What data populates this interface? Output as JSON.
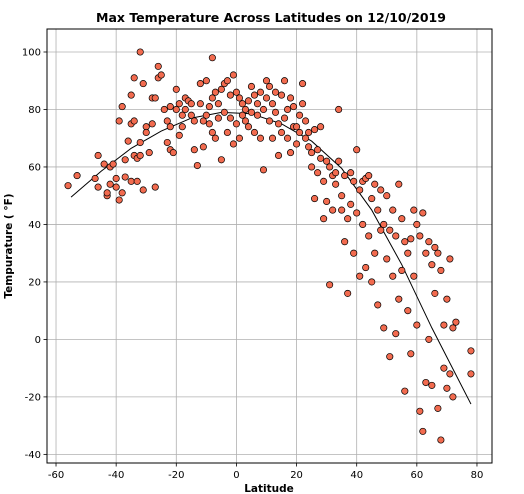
{
  "chart_data": {
    "type": "scatter",
    "title": "Max Temperature Across Latitudes on 12/10/2019",
    "xlabel": "Latitude",
    "ylabel": "Tempurature ( °F)",
    "xlim": [
      -63,
      85
    ],
    "ylim": [
      -43,
      108
    ],
    "xticks": [
      -60,
      -40,
      -20,
      0,
      20,
      40,
      60,
      80
    ],
    "yticks": [
      -40,
      -20,
      0,
      20,
      40,
      60,
      80,
      100
    ],
    "grid": true,
    "point_color": "#f26b4f",
    "point_edge_color": "#000000",
    "trend_line_color": "#000000",
    "trend_line": {
      "x": [
        -55,
        -45,
        -35,
        -25,
        -15,
        -5,
        5,
        15,
        25,
        35,
        45,
        55,
        65,
        78
      ],
      "y": [
        49.5,
        58.5,
        66.5,
        72.5,
        77,
        79,
        78.5,
        75,
        69,
        59.5,
        45,
        26,
        4,
        -22.5
      ]
    },
    "points": [
      [
        -56,
        53.5
      ],
      [
        -53,
        57
      ],
      [
        -47,
        56
      ],
      [
        -46,
        64
      ],
      [
        -46,
        53
      ],
      [
        -44,
        61
      ],
      [
        -43,
        50
      ],
      [
        -43,
        51
      ],
      [
        -42,
        60
      ],
      [
        -42,
        54
      ],
      [
        -41,
        61
      ],
      [
        -40,
        56
      ],
      [
        -40,
        53
      ],
      [
        -39,
        76
      ],
      [
        -39,
        48.5
      ],
      [
        -38,
        81
      ],
      [
        -38,
        51
      ],
      [
        -37,
        56.5
      ],
      [
        -37,
        62.5
      ],
      [
        -36,
        69
      ],
      [
        -35,
        75
      ],
      [
        -35,
        85
      ],
      [
        -35,
        55
      ],
      [
        -34,
        91
      ],
      [
        -34,
        76
      ],
      [
        -34,
        64
      ],
      [
        -33,
        63
      ],
      [
        -33,
        55
      ],
      [
        -32,
        100
      ],
      [
        -32,
        68.5
      ],
      [
        -32,
        64
      ],
      [
        -31,
        89
      ],
      [
        -31,
        52
      ],
      [
        -30,
        74
      ],
      [
        -30,
        72
      ],
      [
        -29,
        65
      ],
      [
        -28,
        84
      ],
      [
        -28,
        75
      ],
      [
        -27,
        84
      ],
      [
        -27,
        53
      ],
      [
        -26,
        91
      ],
      [
        -26,
        95
      ],
      [
        -25,
        92
      ],
      [
        -24,
        80
      ],
      [
        -23,
        76
      ],
      [
        -23,
        68.5
      ],
      [
        -22,
        81
      ],
      [
        -22,
        74
      ],
      [
        -22,
        66
      ],
      [
        -21,
        65
      ],
      [
        -20,
        87
      ],
      [
        -20,
        80
      ],
      [
        -19,
        82
      ],
      [
        -19,
        71
      ],
      [
        -18,
        78
      ],
      [
        -18,
        74
      ],
      [
        -17,
        84
      ],
      [
        -17,
        80
      ],
      [
        -16,
        83
      ],
      [
        -15,
        82
      ],
      [
        -15,
        78
      ],
      [
        -14,
        76
      ],
      [
        -14,
        66
      ],
      [
        -13,
        60.5
      ],
      [
        -12,
        89
      ],
      [
        -12,
        82
      ],
      [
        -11,
        76
      ],
      [
        -11,
        67
      ],
      [
        -10,
        90
      ],
      [
        -10,
        78
      ],
      [
        -9,
        81
      ],
      [
        -9,
        75
      ],
      [
        -8,
        98
      ],
      [
        -8,
        84
      ],
      [
        -8,
        72
      ],
      [
        -7,
        86
      ],
      [
        -7,
        70
      ],
      [
        -6,
        82
      ],
      [
        -6,
        77
      ],
      [
        -5,
        62.5
      ],
      [
        -5,
        87
      ],
      [
        -4,
        89
      ],
      [
        -4,
        79
      ],
      [
        -3,
        90
      ],
      [
        -3,
        72
      ],
      [
        -2,
        85
      ],
      [
        -2,
        77
      ],
      [
        -1,
        92
      ],
      [
        -1,
        68
      ],
      [
        0,
        86
      ],
      [
        0,
        75
      ],
      [
        1,
        84
      ],
      [
        1,
        70
      ],
      [
        2,
        82
      ],
      [
        2,
        78
      ],
      [
        3,
        80
      ],
      [
        3,
        76
      ],
      [
        4,
        83
      ],
      [
        4,
        74
      ],
      [
        5,
        88
      ],
      [
        5,
        79
      ],
      [
        6,
        72
      ],
      [
        6,
        85
      ],
      [
        7,
        78
      ],
      [
        7,
        82
      ],
      [
        8,
        70
      ],
      [
        8,
        86
      ],
      [
        9,
        80
      ],
      [
        9,
        59
      ],
      [
        10,
        90
      ],
      [
        10,
        84
      ],
      [
        11,
        88
      ],
      [
        11,
        76
      ],
      [
        12,
        82
      ],
      [
        12,
        70
      ],
      [
        13,
        86
      ],
      [
        13,
        79
      ],
      [
        14,
        64
      ],
      [
        14,
        75
      ],
      [
        15,
        85
      ],
      [
        15,
        72
      ],
      [
        16,
        90
      ],
      [
        16,
        77
      ],
      [
        17,
        80
      ],
      [
        17,
        70
      ],
      [
        18,
        84
      ],
      [
        18,
        65
      ],
      [
        19,
        81
      ],
      [
        19,
        74
      ],
      [
        20,
        74
      ],
      [
        20,
        68
      ],
      [
        21,
        78
      ],
      [
        21,
        72
      ],
      [
        22,
        82
      ],
      [
        22,
        89
      ],
      [
        23,
        76
      ],
      [
        23,
        70
      ],
      [
        24,
        72
      ],
      [
        24,
        67
      ],
      [
        25,
        65
      ],
      [
        25,
        60
      ],
      [
        26,
        73
      ],
      [
        26,
        49
      ],
      [
        27,
        66
      ],
      [
        27,
        58
      ],
      [
        28,
        74
      ],
      [
        28,
        63
      ],
      [
        29,
        55
      ],
      [
        29,
        42
      ],
      [
        30,
        62
      ],
      [
        30,
        48
      ],
      [
        31,
        60
      ],
      [
        31,
        19
      ],
      [
        32,
        57
      ],
      [
        32,
        45
      ],
      [
        33,
        54
      ],
      [
        33,
        58
      ],
      [
        34,
        80
      ],
      [
        34,
        62
      ],
      [
        35,
        50
      ],
      [
        35,
        45
      ],
      [
        36,
        57
      ],
      [
        36,
        34
      ],
      [
        37,
        42
      ],
      [
        37,
        16
      ],
      [
        38,
        58
      ],
      [
        38,
        47
      ],
      [
        39,
        55
      ],
      [
        39,
        30
      ],
      [
        40,
        66
      ],
      [
        40,
        44
      ],
      [
        41,
        52
      ],
      [
        41,
        22
      ],
      [
        42,
        55
      ],
      [
        42,
        40
      ],
      [
        43,
        56
      ],
      [
        43,
        25
      ],
      [
        44,
        57
      ],
      [
        44,
        36
      ],
      [
        45,
        49
      ],
      [
        45,
        20
      ],
      [
        46,
        54
      ],
      [
        46,
        30
      ],
      [
        47,
        45
      ],
      [
        47,
        12
      ],
      [
        48,
        52
      ],
      [
        48,
        38
      ],
      [
        49,
        40
      ],
      [
        49,
        4
      ],
      [
        50,
        50
      ],
      [
        50,
        28
      ],
      [
        51,
        38
      ],
      [
        51,
        -6
      ],
      [
        52,
        45
      ],
      [
        52,
        22
      ],
      [
        53,
        36
      ],
      [
        53,
        2
      ],
      [
        54,
        54
      ],
      [
        54,
        14
      ],
      [
        55,
        42
      ],
      [
        55,
        24
      ],
      [
        56,
        34
      ],
      [
        56,
        -18
      ],
      [
        57,
        30
      ],
      [
        57,
        10
      ],
      [
        58,
        35
      ],
      [
        58,
        -5
      ],
      [
        59,
        45
      ],
      [
        59,
        22
      ],
      [
        60,
        40
      ],
      [
        60,
        5
      ],
      [
        61,
        36
      ],
      [
        61,
        -25
      ],
      [
        62,
        44
      ],
      [
        62,
        -32
      ],
      [
        63,
        30
      ],
      [
        63,
        -15
      ],
      [
        64,
        34
      ],
      [
        64,
        0
      ],
      [
        65,
        26
      ],
      [
        65,
        -16
      ],
      [
        66,
        32
      ],
      [
        66,
        16
      ],
      [
        67,
        30
      ],
      [
        67,
        -24
      ],
      [
        68,
        24
      ],
      [
        68,
        -35
      ],
      [
        69,
        5
      ],
      [
        69,
        -10
      ],
      [
        70,
        14
      ],
      [
        70,
        -17
      ],
      [
        71,
        28
      ],
      [
        71,
        -12
      ],
      [
        72,
        4
      ],
      [
        72,
        -20
      ],
      [
        73,
        6
      ],
      [
        78,
        -4
      ],
      [
        78,
        -12
      ]
    ]
  }
}
